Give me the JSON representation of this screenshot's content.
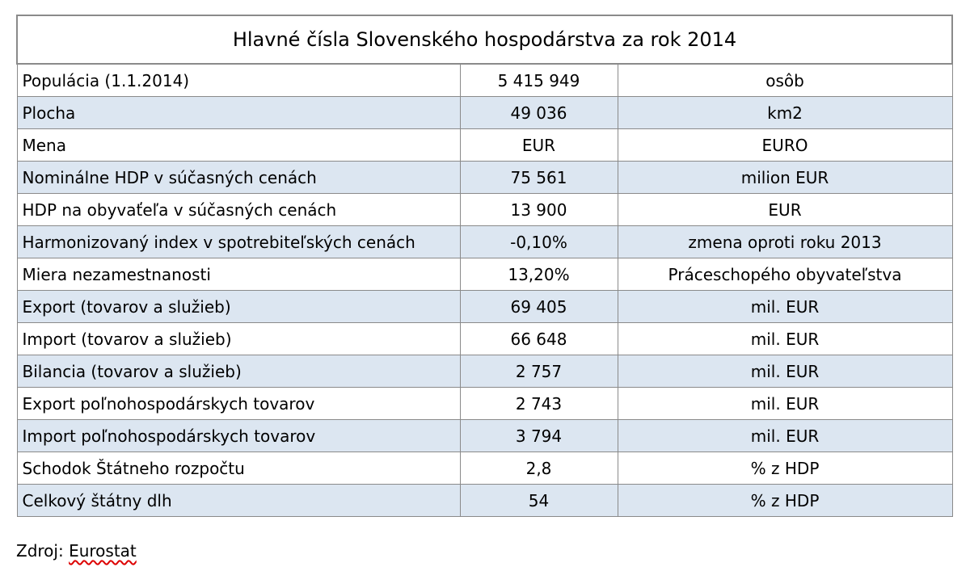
{
  "table": {
    "title": "Hlavné čísla Slovenského hospodárstva za rok 2014",
    "rows": [
      [
        "Populácia (1.1.2014)",
        "5 415 949",
        "osôb"
      ],
      [
        "Plocha",
        "49 036",
        "km2"
      ],
      [
        "Mena",
        "EUR",
        "EURO"
      ],
      [
        "Nominálne HDP v súčasných cenách",
        "75 561",
        "milion EUR"
      ],
      [
        "HDP na obyvaťeľa v súčasných cenách",
        "13 900",
        "EUR"
      ],
      [
        "Harmonizovaný index v spotrebiteľských cenách",
        "-0,10%",
        "zmena oproti roku 2013"
      ],
      [
        "Miera nezamestnanosti",
        "13,20%",
        "Práceschopého obyvateľstva"
      ],
      [
        "Export (tovarov a služieb)",
        "69 405",
        "mil. EUR"
      ],
      [
        "Import (tovarov a služieb)",
        "66 648",
        "mil. EUR"
      ],
      [
        "Bilancia (tovarov a služieb)",
        "2 757",
        "mil. EUR"
      ],
      [
        "Export poľnohospodárskych tovarov",
        "2 743",
        "mil. EUR"
      ],
      [
        "Import poľnohospodárskych tovarov",
        "3 794",
        "mil. EUR"
      ],
      [
        "Schodok Štátneho rozpočtu",
        "2,8",
        "% z HDP"
      ],
      [
        "Celkový štátny dlh",
        "54",
        "% z HDP"
      ]
    ]
  },
  "source": {
    "label": "Zdroj:",
    "name": "Eurostat"
  }
}
